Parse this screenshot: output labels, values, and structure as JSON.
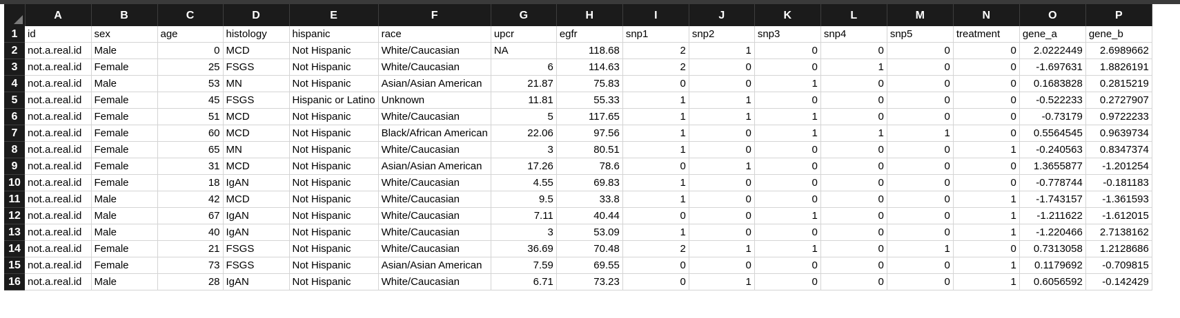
{
  "columns": [
    "A",
    "B",
    "C",
    "D",
    "E",
    "F",
    "G",
    "H",
    "I",
    "J",
    "K",
    "L",
    "M",
    "N",
    "O",
    "P"
  ],
  "rows": [
    {
      "n": "1",
      "cells": [
        "id",
        "sex",
        "age",
        "histology",
        "hispanic",
        "race",
        "upcr",
        "egfr",
        "snp1",
        "snp2",
        "snp3",
        "snp4",
        "snp5",
        "treatment",
        "gene_a",
        "gene_b"
      ]
    },
    {
      "n": "2",
      "cells": [
        "not.a.real.id",
        "Male",
        "0",
        "MCD",
        "Not Hispanic",
        "White/Caucasian",
        "NA",
        "118.68",
        "2",
        "1",
        "0",
        "0",
        "0",
        "0",
        "2.0222449",
        "2.6989662"
      ]
    },
    {
      "n": "3",
      "cells": [
        "not.a.real.id",
        "Female",
        "25",
        "FSGS",
        "Not Hispanic",
        "White/Caucasian",
        "6",
        "114.63",
        "2",
        "0",
        "0",
        "1",
        "0",
        "0",
        "-1.697631",
        "1.8826191"
      ]
    },
    {
      "n": "4",
      "cells": [
        "not.a.real.id",
        "Male",
        "53",
        "MN",
        "Not Hispanic",
        "Asian/Asian American",
        "21.87",
        "75.83",
        "0",
        "0",
        "1",
        "0",
        "0",
        "0",
        "0.1683828",
        "0.2815219"
      ]
    },
    {
      "n": "5",
      "cells": [
        "not.a.real.id",
        "Female",
        "45",
        "FSGS",
        "Hispanic or Latino",
        "Unknown",
        "11.81",
        "55.33",
        "1",
        "1",
        "0",
        "0",
        "0",
        "0",
        "-0.522233",
        "0.2727907"
      ]
    },
    {
      "n": "6",
      "cells": [
        "not.a.real.id",
        "Female",
        "51",
        "MCD",
        "Not Hispanic",
        "White/Caucasian",
        "5",
        "117.65",
        "1",
        "1",
        "1",
        "0",
        "0",
        "0",
        "-0.73179",
        "0.9722233"
      ]
    },
    {
      "n": "7",
      "cells": [
        "not.a.real.id",
        "Female",
        "60",
        "MCD",
        "Not Hispanic",
        "Black/African American",
        "22.06",
        "97.56",
        "1",
        "0",
        "1",
        "1",
        "1",
        "0",
        "0.5564545",
        "0.9639734"
      ]
    },
    {
      "n": "8",
      "cells": [
        "not.a.real.id",
        "Female",
        "65",
        "MN",
        "Not Hispanic",
        "White/Caucasian",
        "3",
        "80.51",
        "1",
        "0",
        "0",
        "0",
        "0",
        "1",
        "-0.240563",
        "0.8347374"
      ]
    },
    {
      "n": "9",
      "cells": [
        "not.a.real.id",
        "Female",
        "31",
        "MCD",
        "Not Hispanic",
        "Asian/Asian American",
        "17.26",
        "78.6",
        "0",
        "1",
        "0",
        "0",
        "0",
        "0",
        "1.3655877",
        "-1.201254"
      ]
    },
    {
      "n": "10",
      "cells": [
        "not.a.real.id",
        "Female",
        "18",
        "IgAN",
        "Not Hispanic",
        "White/Caucasian",
        "4.55",
        "69.83",
        "1",
        "0",
        "0",
        "0",
        "0",
        "0",
        "-0.778744",
        "-0.181183"
      ]
    },
    {
      "n": "11",
      "cells": [
        "not.a.real.id",
        "Male",
        "42",
        "MCD",
        "Not Hispanic",
        "White/Caucasian",
        "9.5",
        "33.8",
        "1",
        "0",
        "0",
        "0",
        "0",
        "1",
        "-1.743157",
        "-1.361593"
      ]
    },
    {
      "n": "12",
      "cells": [
        "not.a.real.id",
        "Male",
        "67",
        "IgAN",
        "Not Hispanic",
        "White/Caucasian",
        "7.11",
        "40.44",
        "0",
        "0",
        "1",
        "0",
        "0",
        "1",
        "-1.211622",
        "-1.612015"
      ]
    },
    {
      "n": "13",
      "cells": [
        "not.a.real.id",
        "Male",
        "40",
        "IgAN",
        "Not Hispanic",
        "White/Caucasian",
        "3",
        "53.09",
        "1",
        "0",
        "0",
        "0",
        "0",
        "1",
        "-1.220466",
        "2.7138162"
      ]
    },
    {
      "n": "14",
      "cells": [
        "not.a.real.id",
        "Female",
        "21",
        "FSGS",
        "Not Hispanic",
        "White/Caucasian",
        "36.69",
        "70.48",
        "2",
        "1",
        "1",
        "0",
        "1",
        "0",
        "0.7313058",
        "1.2128686"
      ]
    },
    {
      "n": "15",
      "cells": [
        "not.a.real.id",
        "Female",
        "73",
        "FSGS",
        "Not Hispanic",
        "Asian/Asian American",
        "7.59",
        "69.55",
        "0",
        "0",
        "0",
        "0",
        "0",
        "1",
        "0.1179692",
        "-0.709815"
      ]
    },
    {
      "n": "16",
      "cells": [
        "not.a.real.id",
        "Male",
        "28",
        "IgAN",
        "Not Hispanic",
        "White/Caucasian",
        "6.71",
        "73.23",
        "0",
        "1",
        "0",
        "0",
        "0",
        "1",
        "0.6056592",
        "-0.142429"
      ]
    }
  ]
}
